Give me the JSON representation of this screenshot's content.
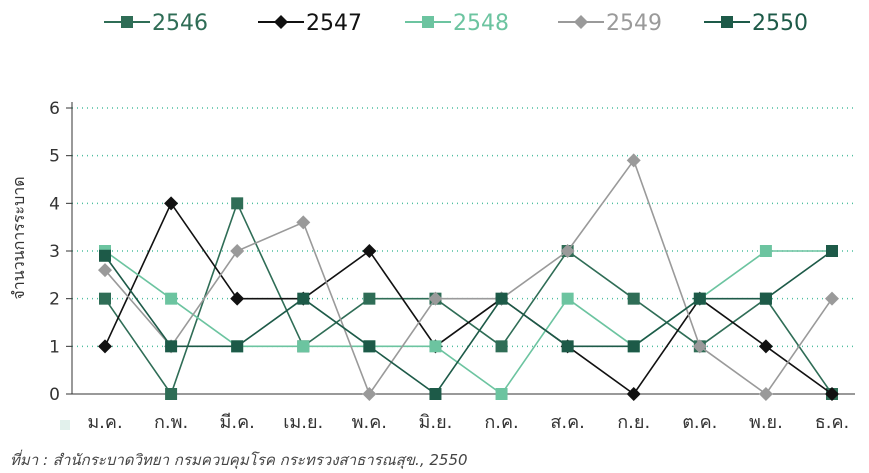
{
  "chart_data": {
    "type": "line",
    "categories": [
      "ม.ค.",
      "ก.พ.",
      "มี.ค.",
      "เม.ย.",
      "พ.ค.",
      "มิ.ย.",
      "ก.ค.",
      "ส.ค.",
      "ก.ย.",
      "ต.ค.",
      "พ.ย.",
      "ธ.ค."
    ],
    "ylabel": "จำนวนการระบาด",
    "ylim": [
      0,
      6
    ],
    "yticks": [
      0,
      1,
      2,
      3,
      4,
      5,
      6
    ],
    "grid": true,
    "legend_position": "top",
    "series": [
      {
        "name": "2546",
        "color": "#2f6d56",
        "marker": "square",
        "values": [
          2,
          0,
          4,
          1,
          2,
          2,
          1,
          3,
          2,
          1,
          2,
          0
        ]
      },
      {
        "name": "2547",
        "color": "#111111",
        "marker": "diamond",
        "values": [
          1,
          4,
          2,
          2,
          3,
          1,
          2,
          1,
          0,
          2,
          1,
          0
        ]
      },
      {
        "name": "2548",
        "color": "#6cc4a0",
        "marker": "square",
        "values": [
          3,
          2,
          1,
          1,
          1,
          1,
          0,
          2,
          1,
          2,
          3,
          3
        ]
      },
      {
        "name": "2549",
        "color": "#9a9a9a",
        "marker": "diamond",
        "values": [
          2.6,
          1,
          3,
          3.6,
          0,
          2,
          2,
          3,
          4.9,
          1,
          0,
          2
        ]
      },
      {
        "name": "2550",
        "color": "#1d5a48",
        "marker": "square",
        "values": [
          2.9,
          1,
          1,
          2,
          1,
          0,
          2,
          1,
          1,
          2,
          2,
          3
        ]
      }
    ]
  },
  "source_note": "ที่มา : สำนักระบาดวิทยา กรมควบคุมโรค กระทรวงสาธารณสุข., 2550"
}
